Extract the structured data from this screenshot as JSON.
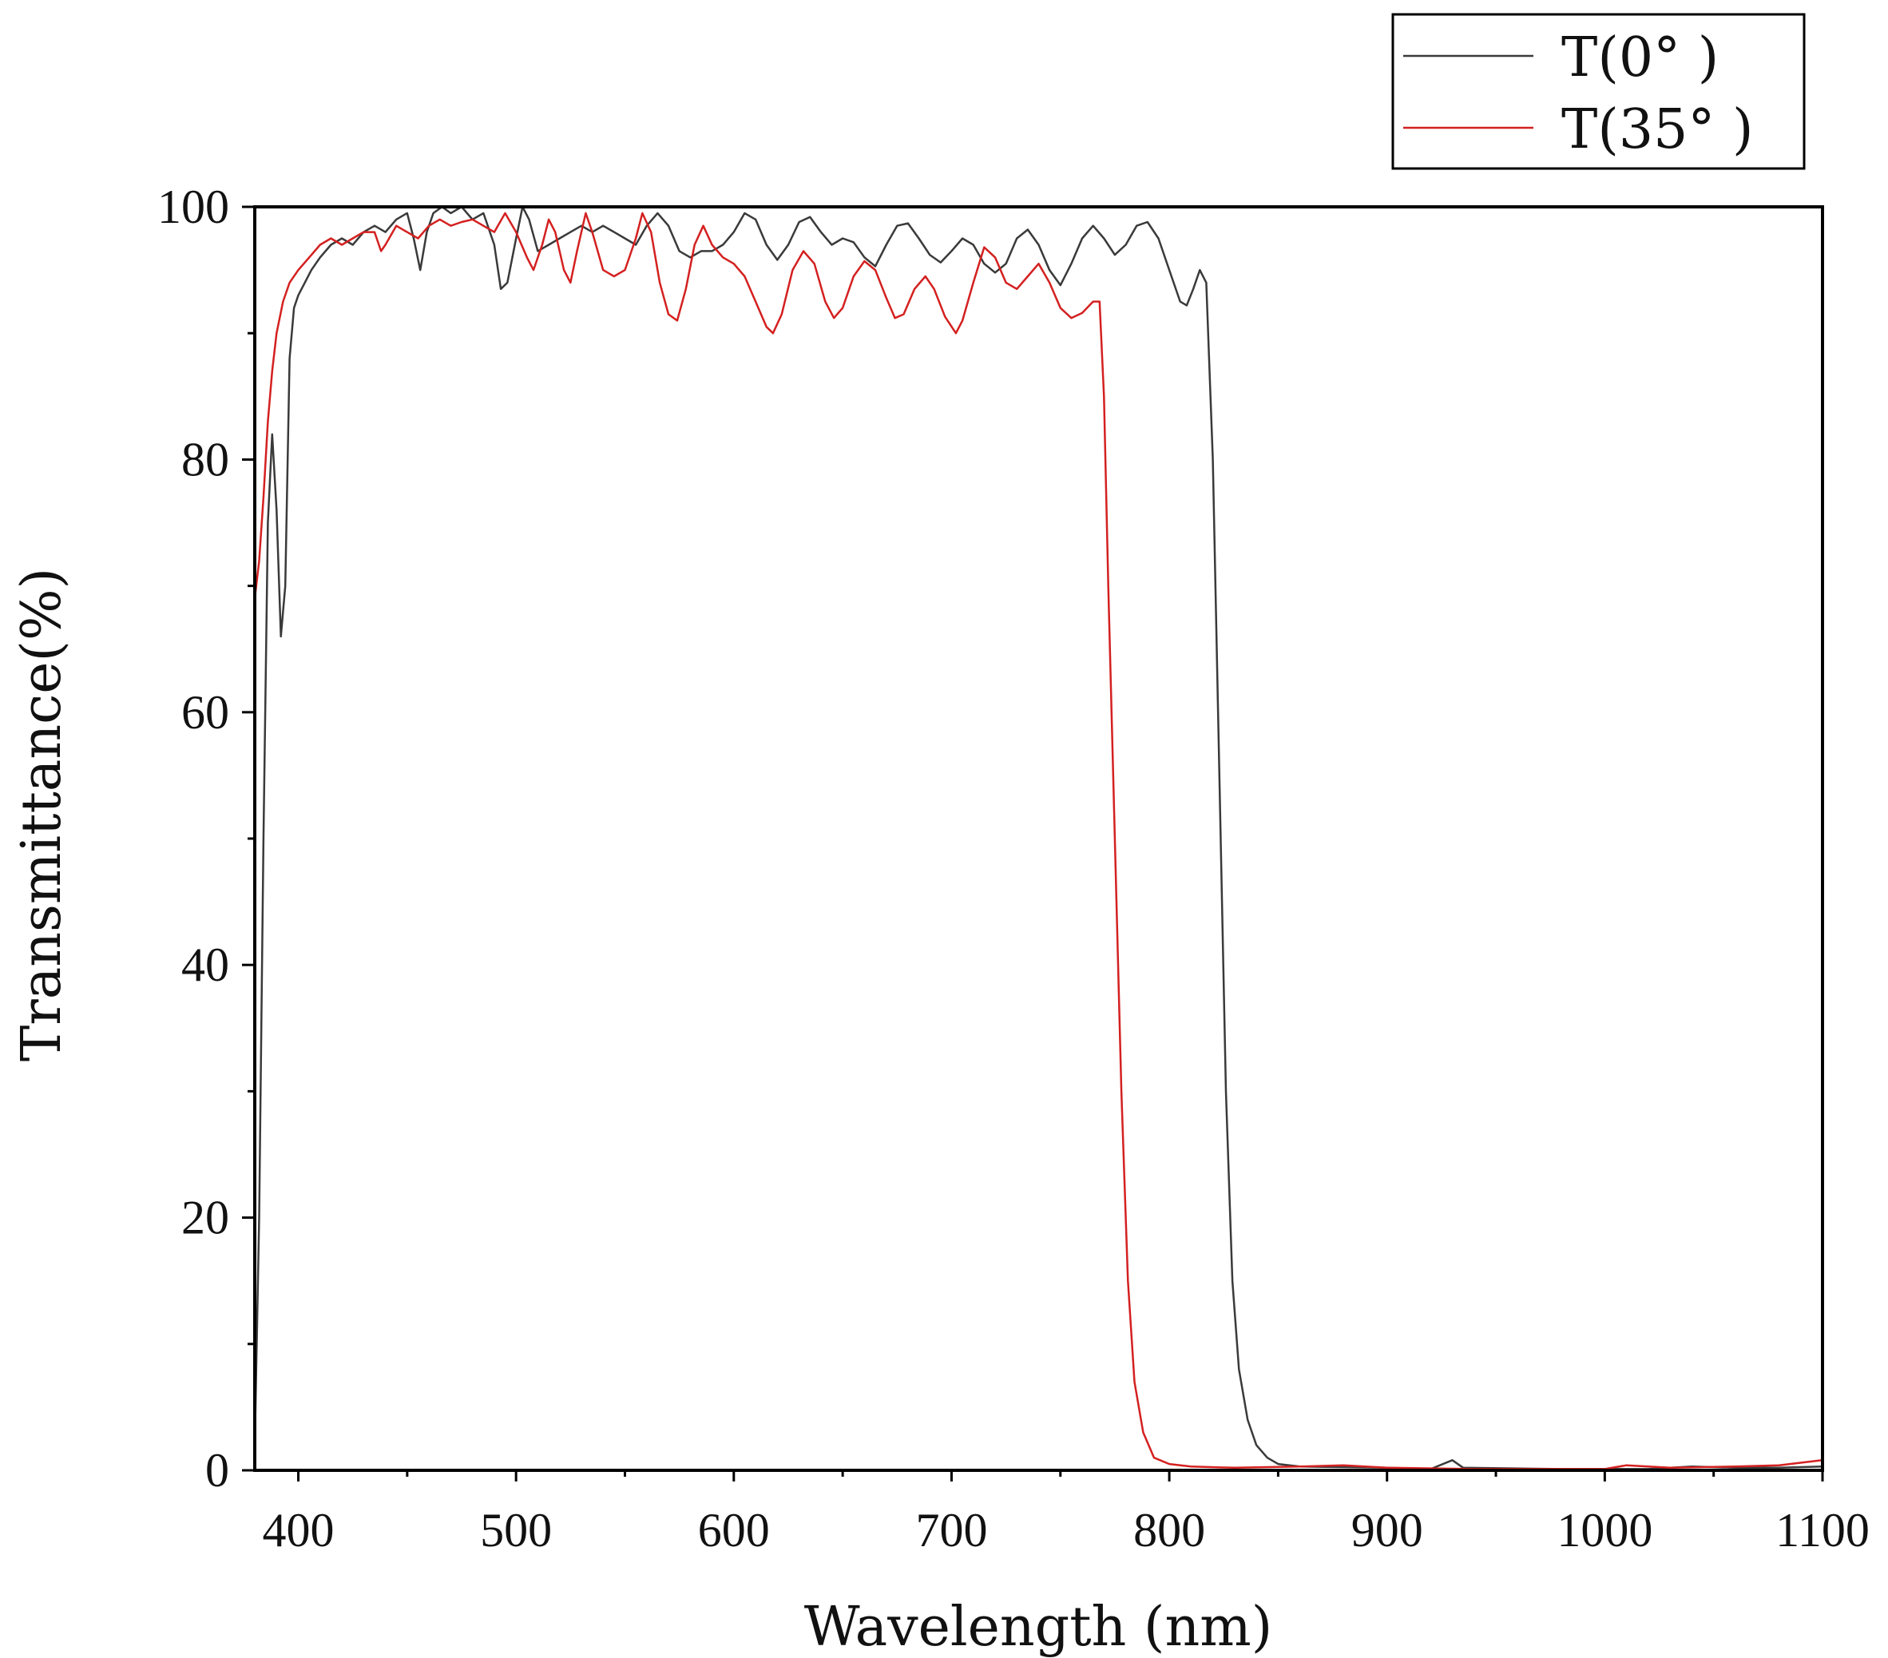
{
  "chart_data": {
    "type": "line",
    "title": "",
    "xlabel": "Wavelength (nm)",
    "ylabel": "Transmittance(%)",
    "xlim": [
      380,
      1100
    ],
    "ylim": [
      0,
      100
    ],
    "xticks": [
      400,
      500,
      600,
      700,
      800,
      900,
      1000,
      1100
    ],
    "xtick_labels": [
      "400",
      "500",
      "600",
      "700",
      "800",
      "900",
      "1000",
      "1100"
    ],
    "yticks": [
      0,
      20,
      40,
      60,
      80,
      100
    ],
    "ytick_labels": [
      "0",
      "20",
      "40",
      "60",
      "80",
      "100"
    ],
    "grid": false,
    "legend_position": "top-right, outside plot",
    "series": [
      {
        "name": "T(0°  )",
        "color": "#3a3a3a",
        "points": [
          [
            380,
            2
          ],
          [
            382,
            20
          ],
          [
            384,
            50
          ],
          [
            386,
            75
          ],
          [
            388,
            82
          ],
          [
            390,
            76
          ],
          [
            392,
            66
          ],
          [
            394,
            70
          ],
          [
            396,
            88
          ],
          [
            398,
            92
          ],
          [
            400,
            93
          ],
          [
            403,
            94
          ],
          [
            406,
            95
          ],
          [
            410,
            96
          ],
          [
            415,
            97
          ],
          [
            420,
            97.5
          ],
          [
            425,
            97
          ],
          [
            430,
            98
          ],
          [
            435,
            98.5
          ],
          [
            440,
            98
          ],
          [
            445,
            99
          ],
          [
            450,
            99.5
          ],
          [
            453,
            97.5
          ],
          [
            456,
            95
          ],
          [
            459,
            98
          ],
          [
            462,
            99.5
          ],
          [
            466,
            100
          ],
          [
            470,
            99.5
          ],
          [
            475,
            100
          ],
          [
            480,
            99
          ],
          [
            485,
            99.5
          ],
          [
            490,
            97
          ],
          [
            493,
            93.5
          ],
          [
            496,
            94
          ],
          [
            500,
            97.5
          ],
          [
            503,
            100
          ],
          [
            506,
            99
          ],
          [
            510,
            96.5
          ],
          [
            515,
            97
          ],
          [
            520,
            97.5
          ],
          [
            525,
            98
          ],
          [
            530,
            98.5
          ],
          [
            535,
            98
          ],
          [
            540,
            98.5
          ],
          [
            545,
            98
          ],
          [
            550,
            97.5
          ],
          [
            555,
            97
          ],
          [
            560,
            98.5
          ],
          [
            565,
            99.5
          ],
          [
            570,
            98.5
          ],
          [
            575,
            96.5
          ],
          [
            580,
            96
          ],
          [
            585,
            96.5
          ],
          [
            590,
            96.5
          ],
          [
            595,
            97
          ],
          [
            600,
            98
          ],
          [
            605,
            99.5
          ],
          [
            610,
            99
          ],
          [
            615,
            97
          ],
          [
            620,
            95.8
          ],
          [
            625,
            97
          ],
          [
            630,
            98.8
          ],
          [
            635,
            99.2
          ],
          [
            640,
            98
          ],
          [
            645,
            97
          ],
          [
            650,
            97.5
          ],
          [
            655,
            97.2
          ],
          [
            660,
            96
          ],
          [
            665,
            95.3
          ],
          [
            670,
            97
          ],
          [
            675,
            98.5
          ],
          [
            680,
            98.7
          ],
          [
            685,
            97.5
          ],
          [
            690,
            96.2
          ],
          [
            695,
            95.6
          ],
          [
            700,
            96.5
          ],
          [
            705,
            97.5
          ],
          [
            710,
            97
          ],
          [
            715,
            95.5
          ],
          [
            720,
            94.8
          ],
          [
            725,
            95.5
          ],
          [
            730,
            97.5
          ],
          [
            735,
            98.2
          ],
          [
            740,
            97
          ],
          [
            745,
            95
          ],
          [
            750,
            93.8
          ],
          [
            755,
            95.5
          ],
          [
            760,
            97.5
          ],
          [
            765,
            98.5
          ],
          [
            770,
            97.5
          ],
          [
            775,
            96.2
          ],
          [
            780,
            97
          ],
          [
            785,
            98.5
          ],
          [
            790,
            98.8
          ],
          [
            795,
            97.5
          ],
          [
            800,
            95
          ],
          [
            805,
            92.5
          ],
          [
            808,
            92.2
          ],
          [
            811,
            93.5
          ],
          [
            814,
            95
          ],
          [
            817,
            94
          ],
          [
            820,
            80
          ],
          [
            823,
            55
          ],
          [
            826,
            30
          ],
          [
            829,
            15
          ],
          [
            832,
            8
          ],
          [
            836,
            4
          ],
          [
            840,
            2
          ],
          [
            845,
            1
          ],
          [
            850,
            0.5
          ],
          [
            860,
            0.3
          ],
          [
            900,
            0.2
          ],
          [
            920,
            0.1
          ],
          [
            930,
            0.8
          ],
          [
            935,
            0.2
          ],
          [
            980,
            0.1
          ],
          [
            1020,
            0.1
          ],
          [
            1040,
            0.3
          ],
          [
            1060,
            0.2
          ],
          [
            1080,
            0.2
          ],
          [
            1100,
            0.3
          ]
        ]
      },
      {
        "name": "T(35°  )",
        "color": "#d42020",
        "points": [
          [
            380,
            69
          ],
          [
            382,
            72
          ],
          [
            384,
            77
          ],
          [
            386,
            83
          ],
          [
            388,
            87
          ],
          [
            390,
            90
          ],
          [
            393,
            92.5
          ],
          [
            396,
            94
          ],
          [
            400,
            95
          ],
          [
            405,
            96
          ],
          [
            410,
            97
          ],
          [
            415,
            97.5
          ],
          [
            420,
            97
          ],
          [
            425,
            97.5
          ],
          [
            430,
            98
          ],
          [
            435,
            98
          ],
          [
            438,
            96.5
          ],
          [
            440,
            97
          ],
          [
            445,
            98.5
          ],
          [
            450,
            98
          ],
          [
            455,
            97.5
          ],
          [
            460,
            98.5
          ],
          [
            465,
            99
          ],
          [
            470,
            98.5
          ],
          [
            475,
            98.8
          ],
          [
            480,
            99
          ],
          [
            485,
            98.5
          ],
          [
            490,
            98
          ],
          [
            495,
            99.5
          ],
          [
            500,
            98
          ],
          [
            505,
            96
          ],
          [
            508,
            95
          ],
          [
            512,
            97
          ],
          [
            515,
            99
          ],
          [
            518,
            98
          ],
          [
            522,
            95
          ],
          [
            525,
            94
          ],
          [
            528,
            96.5
          ],
          [
            532,
            99.5
          ],
          [
            535,
            98
          ],
          [
            540,
            95
          ],
          [
            545,
            94.5
          ],
          [
            550,
            95
          ],
          [
            555,
            97.5
          ],
          [
            558,
            99.5
          ],
          [
            562,
            98
          ],
          [
            566,
            94
          ],
          [
            570,
            91.5
          ],
          [
            574,
            91
          ],
          [
            578,
            93.5
          ],
          [
            582,
            97
          ],
          [
            586,
            98.5
          ],
          [
            590,
            97
          ],
          [
            595,
            96
          ],
          [
            600,
            95.5
          ],
          [
            605,
            94.5
          ],
          [
            610,
            92.5
          ],
          [
            615,
            90.5
          ],
          [
            618,
            90
          ],
          [
            622,
            91.5
          ],
          [
            627,
            95
          ],
          [
            632,
            96.5
          ],
          [
            637,
            95.5
          ],
          [
            642,
            92.5
          ],
          [
            646,
            91.2
          ],
          [
            650,
            92
          ],
          [
            655,
            94.5
          ],
          [
            660,
            95.7
          ],
          [
            665,
            95
          ],
          [
            670,
            92.8
          ],
          [
            674,
            91.2
          ],
          [
            678,
            91.5
          ],
          [
            683,
            93.5
          ],
          [
            688,
            94.5
          ],
          [
            692,
            93.5
          ],
          [
            697,
            91.3
          ],
          [
            702,
            90
          ],
          [
            705,
            91
          ],
          [
            710,
            94
          ],
          [
            715,
            96.8
          ],
          [
            720,
            96
          ],
          [
            725,
            94
          ],
          [
            730,
            93.5
          ],
          [
            735,
            94.5
          ],
          [
            740,
            95.5
          ],
          [
            745,
            94
          ],
          [
            750,
            92
          ],
          [
            755,
            91.2
          ],
          [
            760,
            91.6
          ],
          [
            765,
            92.5
          ],
          [
            768,
            92.5
          ],
          [
            770,
            85
          ],
          [
            772,
            70
          ],
          [
            775,
            50
          ],
          [
            778,
            30
          ],
          [
            781,
            15
          ],
          [
            784,
            7
          ],
          [
            788,
            3
          ],
          [
            793,
            1
          ],
          [
            800,
            0.5
          ],
          [
            810,
            0.3
          ],
          [
            830,
            0.2
          ],
          [
            860,
            0.3
          ],
          [
            880,
            0.4
          ],
          [
            900,
            0.2
          ],
          [
            940,
            0.1
          ],
          [
            1000,
            0.1
          ],
          [
            1010,
            0.4
          ],
          [
            1030,
            0.2
          ],
          [
            1060,
            0.3
          ],
          [
            1080,
            0.4
          ],
          [
            1100,
            0.8
          ]
        ]
      }
    ]
  }
}
